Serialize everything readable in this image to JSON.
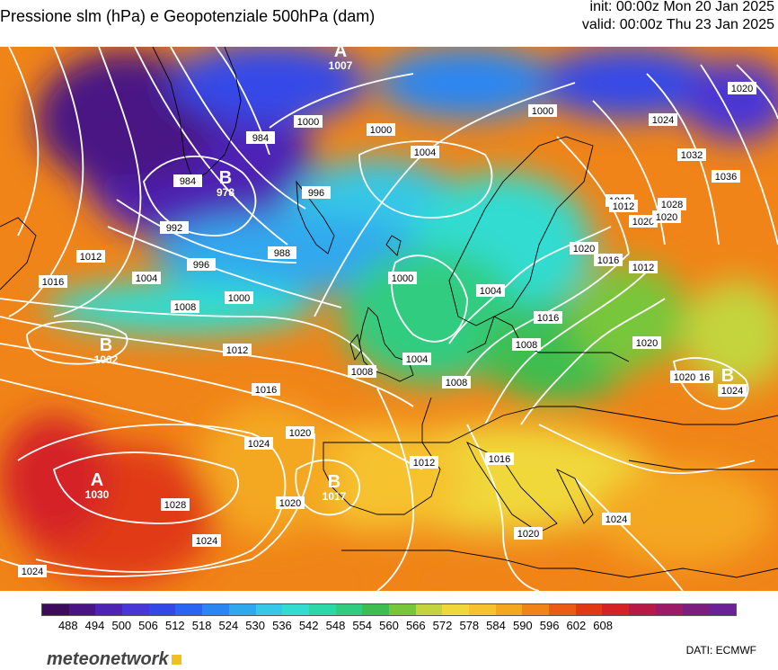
{
  "header": {
    "title": "Pressione slm (hPa) e Geopotenziale 500hPa (dam)",
    "init": "init: 00:00z Mon 20 Jan 2025",
    "valid": "valid: 00:00z Thu 23 Jan 2025"
  },
  "colors": {
    "ramp": [
      "#3d0a5c",
      "#4a1484",
      "#4e22b4",
      "#4a36d6",
      "#3448e8",
      "#2a64f2",
      "#2c86f2",
      "#30a8ee",
      "#36c8e6",
      "#32dcd0",
      "#2ad8a8",
      "#30cc80",
      "#3ebe50",
      "#78c63a",
      "#c4d43e",
      "#f0d83a",
      "#f6c22e",
      "#f4a820",
      "#f08418",
      "#ea5c14",
      "#e03a14",
      "#d42226",
      "#b81a46",
      "#9c1a66",
      "#7c1e80",
      "#6a2296"
    ],
    "isobar": "#ffffff",
    "coastline": "#000000"
  },
  "legend": {
    "labels": [
      "488",
      "494",
      "500",
      "506",
      "512",
      "518",
      "524",
      "530",
      "536",
      "542",
      "548",
      "554",
      "560",
      "566",
      "572",
      "578",
      "584",
      "590",
      "596",
      "602",
      "608"
    ]
  },
  "pressure_centers": [
    {
      "letter": "A",
      "value": "1007"
    },
    {
      "letter": "B",
      "value": "978"
    },
    {
      "letter": "B",
      "value": "1002"
    },
    {
      "letter": "A",
      "value": "1030"
    },
    {
      "letter": "B",
      "value": "1017"
    },
    {
      "letter": "B",
      "value": ""
    }
  ],
  "isobar_labels": [
    "1000",
    "1000",
    "1000",
    "1004",
    "984",
    "984",
    "992",
    "996",
    "996",
    "988",
    "1000",
    "1004",
    "1008",
    "1012",
    "1016",
    "1012",
    "1016",
    "1008",
    "1012",
    "1020",
    "1024",
    "1028",
    "1020",
    "1024",
    "1016",
    "1020",
    "1024",
    "1012",
    "1016",
    "1020",
    "1020",
    "1016",
    "1008",
    "1004",
    "1000",
    "1004",
    "1008",
    "1012",
    "1012",
    "1016",
    "1020",
    "1024",
    "1028",
    "1032",
    "1036",
    "1020",
    "1024",
    "1020",
    "1024",
    "1020"
  ],
  "branding": {
    "logo": "meteonetwork",
    "credits": "DATI:  ECMWF"
  }
}
